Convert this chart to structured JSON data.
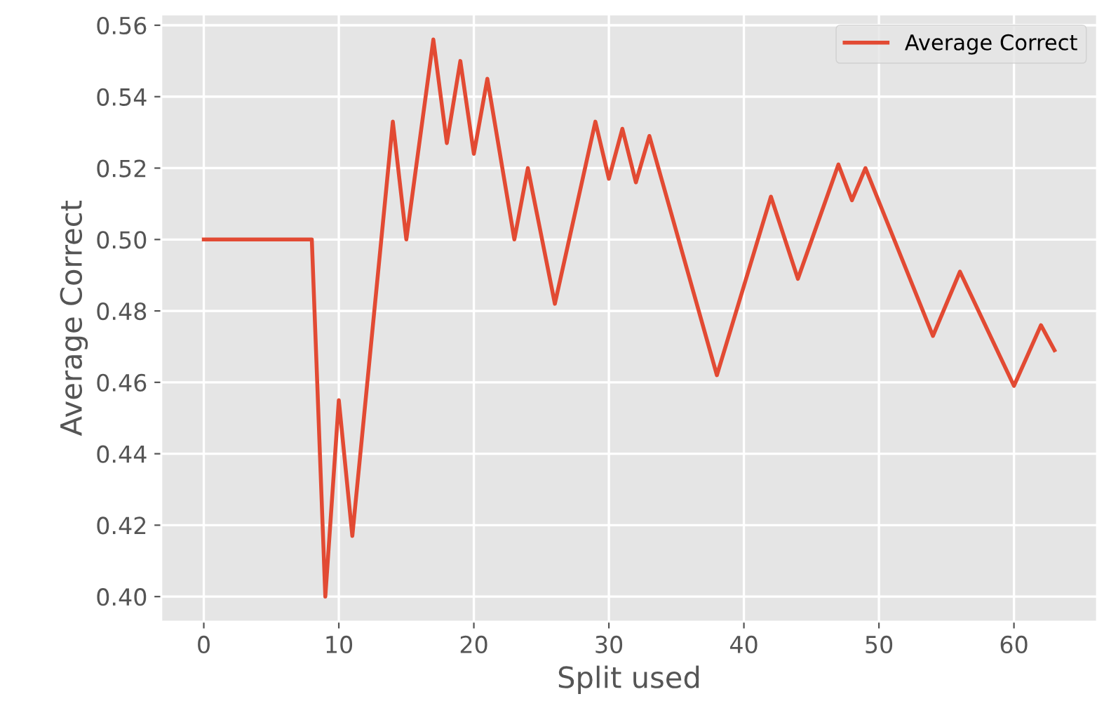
{
  "chart_data": {
    "type": "line",
    "xlabel": "Split used",
    "ylabel": "Average Correct",
    "x": [
      0,
      8,
      9,
      10,
      11,
      14,
      15,
      17,
      18,
      19,
      20,
      21,
      23,
      24,
      26,
      29,
      30,
      31,
      32,
      33,
      38,
      42,
      44,
      47,
      48,
      49,
      54,
      56,
      60,
      62,
      63
    ],
    "series": [
      {
        "name": "Average Correct",
        "color": "#e24a33",
        "values": [
          0.5,
          0.5,
          0.4,
          0.455,
          0.417,
          0.533,
          0.5,
          0.556,
          0.527,
          0.55,
          0.524,
          0.545,
          0.5,
          0.52,
          0.482,
          0.533,
          0.517,
          0.531,
          0.516,
          0.529,
          0.462,
          0.512,
          0.489,
          0.521,
          0.511,
          0.52,
          0.473,
          0.491,
          0.459,
          0.476,
          0.469
        ]
      }
    ],
    "xlim": [
      -3.15,
      66.15
    ],
    "ylim": [
      0.393,
      0.563
    ],
    "xticks": [
      0,
      10,
      20,
      30,
      40,
      50,
      60
    ],
    "yticks": [
      {
        "value": 0.4,
        "label": "0.40"
      },
      {
        "value": 0.42,
        "label": "0.42"
      },
      {
        "value": 0.44,
        "label": "0.44"
      },
      {
        "value": 0.46,
        "label": "0.46"
      },
      {
        "value": 0.48,
        "label": "0.48"
      },
      {
        "value": 0.5,
        "label": "0.50"
      },
      {
        "value": 0.52,
        "label": "0.52"
      },
      {
        "value": 0.54,
        "label": "0.54"
      },
      {
        "value": 0.56,
        "label": "0.56"
      }
    ],
    "grid": true,
    "legend": "top right",
    "line_style": "solid",
    "marker": "none"
  }
}
